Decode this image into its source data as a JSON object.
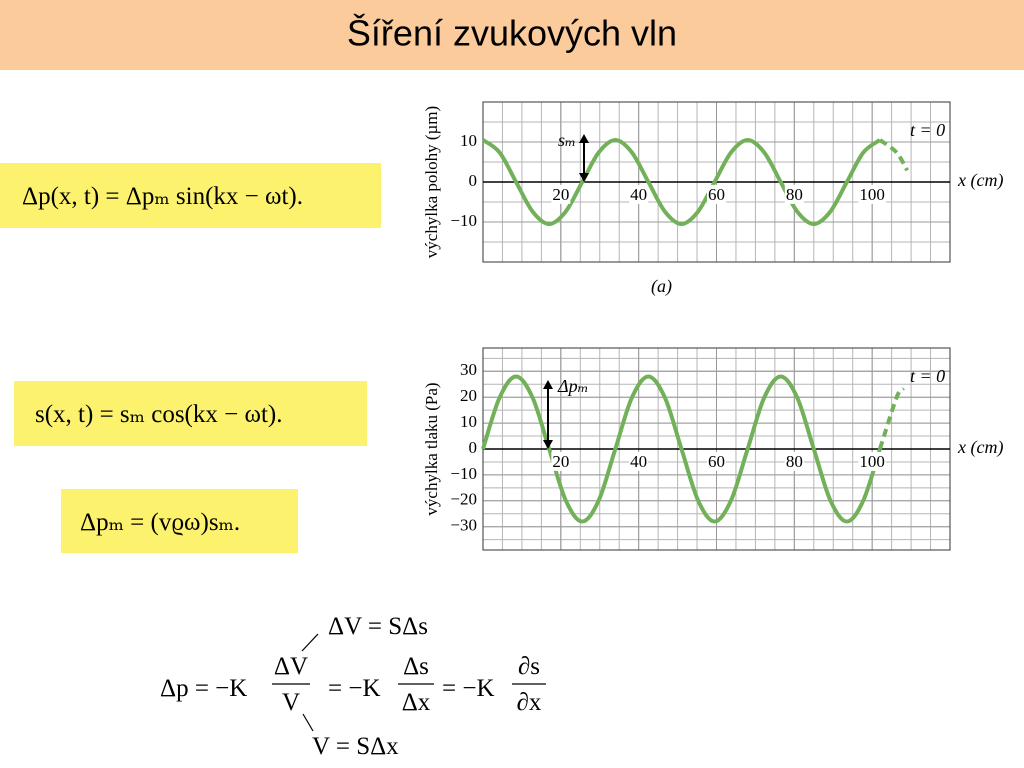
{
  "title": "Šíření zvukových vln",
  "formulas": [
    "Δp(x, t) = Δpₘ sin(kx − ωt).",
    "s(x, t) = sₘ cos(kx − ωt).",
    "Δpₘ = (vϱω)sₘ."
  ],
  "derivation": {
    "top": "ΔV = SΔs",
    "lhs": "Δp = −K",
    "frac1": [
      "ΔV",
      "V"
    ],
    "eq2": "= −K",
    "frac2": [
      "Δs",
      "Δx"
    ],
    "eq3": "= −K",
    "frac3": [
      "∂s",
      "∂x"
    ],
    "bottom": "V = SΔx"
  },
  "chart_data": [
    {
      "type": "line",
      "y_label": "výchylka polohy (µm)",
      "x_label": "x (cm)",
      "amplitude_label": "sₘ",
      "time_label": "t = 0",
      "caption": "(a)",
      "x": [
        0,
        4.25,
        8.5,
        12.75,
        17,
        21.25,
        25.5,
        29.75,
        34,
        38.25,
        42.5,
        46.75,
        51,
        55.25,
        59.5,
        63.75,
        68,
        72.25,
        76.5,
        80.75,
        85,
        89.25,
        93.5,
        97.75,
        102,
        106.25,
        109
      ],
      "series": [
        {
          "color": "#72b05a",
          "dashed": false,
          "values": [
            10.5,
            7.4,
            0,
            -7.4,
            -10.5,
            -7.4,
            0,
            7.4,
            10.5,
            7.4,
            0,
            -7.4,
            -10.5,
            -7.4,
            0,
            7.4,
            10.5,
            7.4,
            0,
            -7.4,
            -10.5,
            -7.4,
            0,
            7.4,
            10.5,
            null,
            null
          ]
        },
        {
          "color": "#72b05a",
          "dashed": true,
          "values": [
            null,
            null,
            null,
            null,
            null,
            null,
            null,
            null,
            null,
            null,
            null,
            null,
            null,
            null,
            null,
            null,
            null,
            null,
            null,
            null,
            null,
            null,
            null,
            null,
            10.5,
            7.4,
            2.9
          ]
        }
      ],
      "xlim": [
        0,
        120
      ],
      "xticks": [
        20,
        40,
        60,
        80,
        100
      ],
      "ylim": [
        -20,
        20
      ],
      "yticks": [
        10,
        0,
        {
          "value": -10,
          "label": "−10"
        }
      ],
      "grid": true
    },
    {
      "type": "line",
      "y_label": "výchylka tlaku (Pa)",
      "x_label": "x (cm)",
      "amplitude_label": "Δpₘ",
      "time_label": "t = 0",
      "x": [
        0,
        4.25,
        8.5,
        12.75,
        17,
        21.25,
        25.5,
        29.75,
        34,
        38.25,
        42.5,
        46.75,
        51,
        55.25,
        59.5,
        63.75,
        68,
        72.25,
        76.5,
        80.75,
        85,
        89.25,
        93.5,
        97.75,
        102,
        106.25,
        108
      ],
      "series": [
        {
          "color": "#72b05a",
          "dashed": false,
          "values": [
            0,
            19.8,
            28,
            19.8,
            0,
            -19.8,
            -28,
            -19.8,
            0,
            19.8,
            28,
            19.8,
            0,
            -19.8,
            -28,
            -19.8,
            0,
            19.8,
            28,
            19.8,
            0,
            -19.8,
            -28,
            -19.8,
            0,
            null,
            null
          ]
        },
        {
          "color": "#72b05a",
          "dashed": true,
          "values": [
            null,
            null,
            null,
            null,
            null,
            null,
            null,
            null,
            null,
            null,
            null,
            null,
            null,
            null,
            null,
            null,
            null,
            null,
            null,
            null,
            null,
            null,
            null,
            null,
            0,
            19.8,
            23.5
          ]
        }
      ],
      "xlim": [
        0,
        120
      ],
      "xticks": [
        20,
        40,
        60,
        80,
        100
      ],
      "ylim": [
        -39,
        39
      ],
      "yticks": [
        30,
        20,
        10,
        0,
        {
          "value": -10,
          "label": "−10"
        },
        {
          "value": -20,
          "label": "−20"
        },
        {
          "value": -30,
          "label": "−30"
        }
      ],
      "grid": true
    }
  ]
}
